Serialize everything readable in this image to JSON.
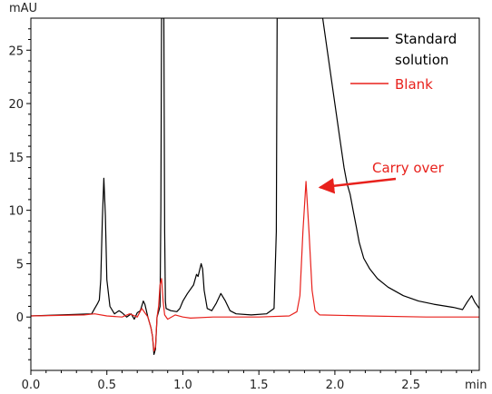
{
  "chart_data": {
    "type": "line",
    "title": "",
    "xlabel": "min",
    "ylabel": "mAU",
    "xlim": [
      0.0,
      2.95
    ],
    "ylim": [
      -5,
      28
    ],
    "x_ticks": [
      0.0,
      0.5,
      1.0,
      1.5,
      2.0,
      2.5
    ],
    "x_tick_labels": [
      "0.0",
      "0.5",
      "1.0",
      "1.5",
      "2.0",
      "2.5"
    ],
    "y_ticks": [
      0,
      5,
      10,
      15,
      20,
      25
    ],
    "y_tick_labels": [
      "0",
      "5",
      "10",
      "15",
      "20",
      "25"
    ],
    "grid": false,
    "legend_position": "top-right",
    "series": [
      {
        "name": "Standard solution",
        "color": "#000000",
        "points": [
          [
            0.0,
            0.1
          ],
          [
            0.2,
            0.2
          ],
          [
            0.4,
            0.3
          ],
          [
            0.42,
            0.8
          ],
          [
            0.44,
            1.3
          ],
          [
            0.45,
            1.6
          ],
          [
            0.46,
            3.5
          ],
          [
            0.47,
            9.0
          ],
          [
            0.48,
            13.0
          ],
          [
            0.49,
            9.5
          ],
          [
            0.5,
            3.5
          ],
          [
            0.52,
            1.0
          ],
          [
            0.55,
            0.3
          ],
          [
            0.58,
            0.6
          ],
          [
            0.6,
            0.4
          ],
          [
            0.63,
            0.0
          ],
          [
            0.66,
            0.3
          ],
          [
            0.68,
            -0.2
          ],
          [
            0.7,
            0.4
          ],
          [
            0.72,
            0.6
          ],
          [
            0.74,
            1.5
          ],
          [
            0.75,
            1.2
          ],
          [
            0.77,
            0.0
          ],
          [
            0.79,
            -1.0
          ],
          [
            0.8,
            -1.8
          ],
          [
            0.81,
            -3.5
          ],
          [
            0.82,
            -3.0
          ],
          [
            0.83,
            0.0
          ],
          [
            0.84,
            0.5
          ],
          [
            0.85,
            1.0
          ],
          [
            0.855,
            10.0
          ],
          [
            0.86,
            28.0
          ],
          [
            0.875,
            28.0
          ],
          [
            0.88,
            8.0
          ],
          [
            0.885,
            1.5
          ],
          [
            0.89,
            0.8
          ],
          [
            0.92,
            0.6
          ],
          [
            0.96,
            0.5
          ],
          [
            0.98,
            0.8
          ],
          [
            1.0,
            1.5
          ],
          [
            1.03,
            2.2
          ],
          [
            1.07,
            3.0
          ],
          [
            1.09,
            4.0
          ],
          [
            1.1,
            3.8
          ],
          [
            1.12,
            5.0
          ],
          [
            1.13,
            4.5
          ],
          [
            1.14,
            2.5
          ],
          [
            1.16,
            0.8
          ],
          [
            1.19,
            0.6
          ],
          [
            1.22,
            1.3
          ],
          [
            1.25,
            2.2
          ],
          [
            1.28,
            1.5
          ],
          [
            1.31,
            0.6
          ],
          [
            1.35,
            0.3
          ],
          [
            1.45,
            0.2
          ],
          [
            1.55,
            0.3
          ],
          [
            1.6,
            0.8
          ],
          [
            1.615,
            8.0
          ],
          [
            1.62,
            28.0
          ],
          [
            1.92,
            28.0
          ],
          [
            1.95,
            25.0
          ],
          [
            1.99,
            21.0
          ],
          [
            2.03,
            17.0
          ],
          [
            2.06,
            14.0
          ],
          [
            2.08,
            12.5
          ],
          [
            2.1,
            11.5
          ],
          [
            2.12,
            10.0
          ],
          [
            2.14,
            8.5
          ],
          [
            2.16,
            7.0
          ],
          [
            2.19,
            5.5
          ],
          [
            2.23,
            4.5
          ],
          [
            2.28,
            3.6
          ],
          [
            2.35,
            2.8
          ],
          [
            2.45,
            2.0
          ],
          [
            2.55,
            1.5
          ],
          [
            2.65,
            1.2
          ],
          [
            2.78,
            0.9
          ],
          [
            2.84,
            0.7
          ],
          [
            2.87,
            1.4
          ],
          [
            2.9,
            2.0
          ],
          [
            2.92,
            1.4
          ],
          [
            2.95,
            0.8
          ]
        ]
      },
      {
        "name": "Blank",
        "color": "#e8211c",
        "points": [
          [
            0.0,
            0.1
          ],
          [
            0.35,
            0.2
          ],
          [
            0.42,
            0.3
          ],
          [
            0.5,
            0.1
          ],
          [
            0.6,
            0.0
          ],
          [
            0.65,
            0.3
          ],
          [
            0.7,
            0.0
          ],
          [
            0.73,
            0.8
          ],
          [
            0.75,
            0.4
          ],
          [
            0.77,
            0.0
          ],
          [
            0.79,
            -1.0
          ],
          [
            0.8,
            -1.8
          ],
          [
            0.81,
            -3.2
          ],
          [
            0.82,
            -2.8
          ],
          [
            0.83,
            0.0
          ],
          [
            0.84,
            1.0
          ],
          [
            0.85,
            3.0
          ],
          [
            0.86,
            3.6
          ],
          [
            0.87,
            1.5
          ],
          [
            0.88,
            0.2
          ],
          [
            0.9,
            -0.2
          ],
          [
            0.95,
            0.2
          ],
          [
            1.0,
            0.0
          ],
          [
            1.05,
            -0.1
          ],
          [
            1.2,
            0.0
          ],
          [
            1.5,
            0.0
          ],
          [
            1.7,
            0.1
          ],
          [
            1.75,
            0.5
          ],
          [
            1.77,
            2.0
          ],
          [
            1.79,
            8.0
          ],
          [
            1.81,
            12.7
          ],
          [
            1.83,
            8.0
          ],
          [
            1.85,
            2.5
          ],
          [
            1.87,
            0.6
          ],
          [
            1.9,
            0.2
          ],
          [
            2.2,
            0.1
          ],
          [
            2.6,
            0.0
          ],
          [
            2.95,
            0.0
          ]
        ]
      }
    ],
    "legend": [
      {
        "label_lines": [
          "Standard",
          "solution"
        ],
        "color": "#000000"
      },
      {
        "label_lines": [
          "Blank"
        ],
        "color": "#e8211c"
      }
    ],
    "annotations": [
      {
        "text": "Carry over",
        "color": "#e8211c",
        "arrow_to": [
          1.83,
          11.8
        ]
      }
    ]
  }
}
